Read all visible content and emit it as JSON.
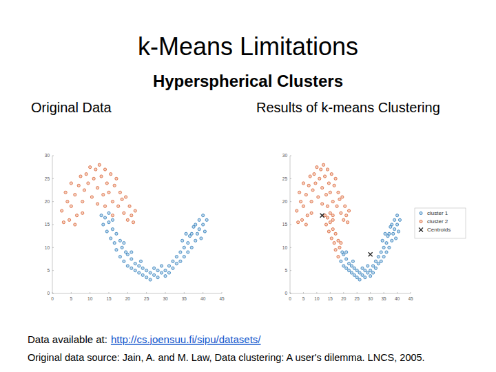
{
  "slide": {
    "title": "k-Means Limitations",
    "subtitle": "Hyperspherical Clusters",
    "source_label": "Data available at:",
    "source_url": "http://cs.joensuu.fi/sipu/datasets/",
    "citation": "Original data source: Jain, A. and M. Law, Data clustering: A user's dilemma. LNCS, 2005."
  },
  "chart_data": [
    {
      "type": "scatter",
      "title": "Original Data",
      "xlim": [
        0,
        45
      ],
      "ylim": [
        0,
        30
      ],
      "xticks": [
        0,
        5,
        10,
        15,
        20,
        25,
        30,
        35,
        40,
        45
      ],
      "yticks": [
        0,
        5,
        10,
        15,
        20,
        25,
        30
      ],
      "grid": false,
      "series": [
        {
          "color": "#d9602e",
          "marker": "circle",
          "x": [
            3,
            2.5,
            4,
            3.5,
            5,
            5,
            6,
            6.5,
            7,
            7.5,
            8,
            8.5,
            9,
            9.5,
            10,
            10.5,
            11,
            11.5,
            12,
            12.5,
            13,
            13.5,
            14,
            14.5,
            15,
            15.5,
            16,
            16.5,
            17,
            17.5,
            18,
            18.5,
            19,
            19.5,
            20,
            20.5,
            21,
            21.5,
            22,
            4.5,
            6,
            8,
            12,
            14,
            16
          ],
          "y": [
            15.5,
            18,
            20,
            22,
            24,
            19,
            21.5,
            17,
            23.5,
            25.5,
            20,
            22.5,
            26,
            24,
            27.5,
            21,
            25,
            27,
            23,
            28,
            25.5,
            21.5,
            27,
            24,
            22,
            26,
            20,
            23.5,
            25,
            19,
            22,
            20.5,
            17.5,
            21,
            16,
            19,
            17,
            15.5,
            18,
            16,
            15,
            17.5,
            19.5,
            19,
            17
          ]
        },
        {
          "color": "#2b7bba",
          "marker": "circle",
          "x": [
            13,
            14,
            13.5,
            15,
            14.5,
            15.5,
            16,
            16.5,
            17,
            17,
            18,
            18,
            18.5,
            15,
            16,
            19,
            19,
            19.5,
            20,
            20,
            21,
            21,
            22,
            22,
            23,
            23,
            24,
            24,
            25,
            25,
            26,
            26,
            27,
            27,
            28,
            28,
            29,
            29,
            30,
            30,
            31,
            31,
            32,
            32,
            33,
            33,
            34,
            34,
            35,
            35,
            36,
            36,
            36.5,
            37,
            37,
            37.5,
            38,
            38,
            38.5,
            39,
            39,
            39.5,
            40,
            40,
            40.5,
            41,
            35.5,
            34.5,
            21,
            23.5
          ],
          "y": [
            17,
            16.5,
            15,
            15.5,
            13.5,
            12,
            14,
            11,
            13,
            9.5,
            11.5,
            8,
            10,
            17.5,
            16,
            11,
            7,
            9,
            6,
            8.5,
            5.5,
            7.5,
            5,
            6.5,
            4.5,
            6,
            4,
            5.5,
            3.5,
            5,
            4.5,
            3,
            4,
            5.5,
            3.5,
            5,
            4.5,
            6,
            5,
            3.8,
            6,
            4.5,
            5.5,
            7,
            6.5,
            8,
            7,
            9,
            8,
            10,
            9,
            11,
            12.5,
            10,
            13,
            14.5,
            11.5,
            15,
            13,
            16,
            14,
            12,
            15,
            17,
            13.5,
            16,
            13,
            11.5,
            9,
            7
          ]
        }
      ]
    },
    {
      "type": "scatter",
      "title": "Results of k-means Clustering",
      "xlim": [
        0,
        45
      ],
      "ylim": [
        0,
        30
      ],
      "xticks": [
        0,
        5,
        10,
        15,
        20,
        25,
        30,
        35,
        40,
        45
      ],
      "yticks": [
        0,
        5,
        10,
        15,
        20,
        25,
        30
      ],
      "grid": false,
      "legend": "right",
      "series": [
        {
          "name": "cluster 1",
          "color": "#2b7bba",
          "marker": "circle",
          "x": [
            19,
            19.5,
            20,
            20,
            21,
            21,
            22,
            22,
            23,
            23,
            24,
            24,
            25,
            25,
            26,
            26,
            27,
            27,
            28,
            28,
            29,
            29,
            30,
            30,
            31,
            31,
            32,
            32,
            33,
            33,
            34,
            34,
            35,
            35,
            36,
            36,
            36.5,
            37,
            37,
            37.5,
            38,
            38,
            38.5,
            39,
            39,
            39.5,
            40,
            40,
            40.5,
            41,
            35.5,
            34.5,
            21,
            23.5
          ],
          "y": [
            7,
            9,
            6,
            8.5,
            5.5,
            7.5,
            5,
            6.5,
            4.5,
            6,
            4,
            5.5,
            3.5,
            5,
            4.5,
            3,
            4,
            5.5,
            3.5,
            5,
            4.5,
            6,
            5,
            3.8,
            6,
            4.5,
            5.5,
            7,
            6.5,
            8,
            7,
            9,
            8,
            10,
            9,
            11,
            12.5,
            10,
            13,
            14.5,
            11.5,
            15,
            13,
            16,
            14,
            12,
            15,
            17,
            13.5,
            16,
            13,
            11.5,
            9,
            7
          ]
        },
        {
          "name": "cluster 2",
          "color": "#d9602e",
          "marker": "circle",
          "x": [
            3,
            2.5,
            4,
            3.5,
            5,
            5,
            6,
            6.5,
            7,
            7.5,
            8,
            8.5,
            9,
            9.5,
            10,
            10.5,
            11,
            11.5,
            12,
            12.5,
            13,
            13.5,
            14,
            14.5,
            15,
            15.5,
            16,
            16.5,
            17,
            17.5,
            18,
            18.5,
            19,
            19.5,
            20,
            20.5,
            21,
            21.5,
            22,
            4.5,
            6,
            8,
            12,
            14,
            16,
            13,
            14,
            13.5,
            15,
            14.5,
            15.5,
            16,
            16.5,
            17,
            17,
            18,
            18,
            18.5,
            15,
            16,
            19
          ],
          "y": [
            15.5,
            18,
            20,
            22,
            24,
            19,
            21.5,
            17,
            23.5,
            25.5,
            20,
            22.5,
            26,
            24,
            27.5,
            21,
            25,
            27,
            23,
            28,
            25.5,
            21.5,
            27,
            24,
            22,
            26,
            20,
            23.5,
            25,
            19,
            22,
            20.5,
            17.5,
            21,
            16,
            19,
            17,
            15.5,
            18,
            16,
            15,
            17.5,
            19.5,
            19,
            17,
            17,
            16.5,
            15,
            15.5,
            13.5,
            12,
            14,
            11,
            13,
            9.5,
            11.5,
            8,
            10,
            17.5,
            16,
            11
          ]
        },
        {
          "name": "Centroids",
          "color": "#222222",
          "marker": "x",
          "x": [
            12,
            30
          ],
          "y": [
            17,
            8.5
          ]
        }
      ]
    }
  ]
}
